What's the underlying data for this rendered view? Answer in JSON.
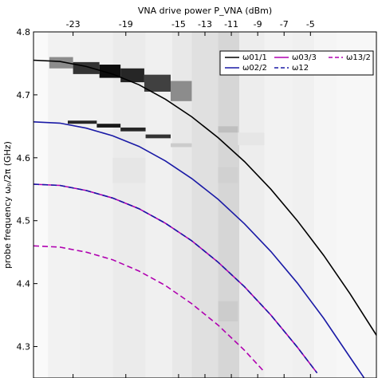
{
  "chart_data": {
    "type": "line",
    "top_axis": {
      "label": "VNA drive power P_VNA (dBm)",
      "ticks": [
        -23,
        -19,
        -15,
        -13,
        -11,
        -9,
        -7,
        -5
      ],
      "tick_labels": [
        "-23",
        "-19",
        "-15",
        "-13",
        "-11",
        "-9",
        "-7",
        "-5"
      ],
      "range": [
        -26,
        0
      ]
    },
    "y_axis": {
      "label": "probe frequency ωₚ/2π (GHz)",
      "ticks": [
        4.3,
        4.4,
        4.5,
        4.6,
        4.7,
        4.8
      ],
      "tick_labels": [
        "4.3",
        "4.4",
        "4.5",
        "4.6",
        "4.7",
        "4.8"
      ],
      "ylim": [
        4.25,
        4.8
      ]
    },
    "series": [
      {
        "name": "ω01/1",
        "color": "#000000",
        "dash": "solid",
        "points": [
          [
            -26,
            4.755
          ],
          [
            -24,
            4.753
          ],
          [
            -22,
            4.745
          ],
          [
            -20,
            4.733
          ],
          [
            -18,
            4.716
          ],
          [
            -16,
            4.693
          ],
          [
            -14,
            4.665
          ],
          [
            -12,
            4.632
          ],
          [
            -10,
            4.594
          ],
          [
            -8,
            4.55
          ],
          [
            -6,
            4.5
          ],
          [
            -4,
            4.445
          ],
          [
            -2,
            4.384
          ],
          [
            0,
            4.318
          ],
          [
            2,
            4.246
          ]
        ]
      },
      {
        "name": "ω02/2",
        "color": "#1a1aa6",
        "dash": "solid",
        "points": [
          [
            -26,
            4.657
          ],
          [
            -24,
            4.655
          ],
          [
            -22,
            4.647
          ],
          [
            -20,
            4.635
          ],
          [
            -18,
            4.618
          ],
          [
            -16,
            4.595
          ],
          [
            -14,
            4.567
          ],
          [
            -12,
            4.534
          ],
          [
            -10,
            4.495
          ],
          [
            -8,
            4.451
          ],
          [
            -6,
            4.401
          ],
          [
            -4,
            4.345
          ],
          [
            -2,
            4.283
          ],
          [
            -0.8,
            4.246
          ]
        ]
      },
      {
        "name": "ω03/3",
        "color": "#b000b0",
        "dash": "solid",
        "points": [
          [
            -26,
            4.558
          ],
          [
            -24,
            4.556
          ],
          [
            -22,
            4.548
          ],
          [
            -20,
            4.536
          ],
          [
            -18,
            4.519
          ],
          [
            -16,
            4.496
          ],
          [
            -14,
            4.468
          ],
          [
            -12,
            4.434
          ],
          [
            -10,
            4.395
          ],
          [
            -8,
            4.35
          ],
          [
            -6,
            4.299
          ],
          [
            -4.5,
            4.258
          ]
        ]
      },
      {
        "name": "ω12",
        "color": "#1a1aa6",
        "dash": "dashed",
        "points": [
          [
            -26,
            4.558
          ],
          [
            -24,
            4.556
          ],
          [
            -22,
            4.548
          ],
          [
            -20,
            4.536
          ],
          [
            -18,
            4.519
          ],
          [
            -16,
            4.496
          ],
          [
            -14,
            4.468
          ],
          [
            -12,
            4.434
          ],
          [
            -10,
            4.395
          ],
          [
            -8,
            4.35
          ],
          [
            -6,
            4.299
          ],
          [
            -4.5,
            4.258
          ]
        ]
      },
      {
        "name": "ω13/2",
        "color": "#b000b0",
        "dash": "dashed",
        "points": [
          [
            -26,
            4.46
          ],
          [
            -24,
            4.458
          ],
          [
            -22,
            4.45
          ],
          [
            -20,
            4.438
          ],
          [
            -18,
            4.42
          ],
          [
            -16,
            4.397
          ],
          [
            -14,
            4.368
          ],
          [
            -12,
            4.334
          ],
          [
            -10,
            4.294
          ],
          [
            -8.6,
            4.262
          ]
        ]
      }
    ],
    "legend": {
      "placement": "top-right",
      "entries": [
        {
          "label": "ω01/1",
          "color": "#000000",
          "dash": "solid"
        },
        {
          "label": "ω03/3",
          "color": "#b000b0",
          "dash": "solid"
        },
        {
          "label": "ω13/2",
          "color": "#b000b0",
          "dash": "dashed"
        },
        {
          "label": "ω02/2",
          "color": "#1a1aa6",
          "dash": "solid"
        },
        {
          "label": "ω12",
          "color": "#1a1aa6",
          "dash": "dashed"
        }
      ]
    },
    "background": {
      "colormap": "grayscale",
      "columns": [
        {
          "x0": -26,
          "x1": -24.9,
          "level": 0.02
        },
        {
          "x0": -24.9,
          "x1": -22.5,
          "level": 0.05
        },
        {
          "x0": -22.5,
          "x1": -20,
          "level": 0.06
        },
        {
          "x0": -20,
          "x1": -17.5,
          "level": 0.08
        },
        {
          "x0": -17.5,
          "x1": -15.5,
          "level": 0.06
        },
        {
          "x0": -15.5,
          "x1": -14,
          "level": 0.09
        },
        {
          "x0": -14,
          "x1": -12,
          "level": 0.12
        },
        {
          "x0": -12,
          "x1": -10.4,
          "level": 0.16
        },
        {
          "x0": -10.4,
          "x1": -8.5,
          "level": 0.07
        },
        {
          "x0": -8.5,
          "x1": -6.4,
          "level": 0.05
        },
        {
          "x0": -6.4,
          "x1": -4.7,
          "level": 0.06
        },
        {
          "x0": -4.7,
          "x1": -3,
          "level": 0.04
        },
        {
          "x0": -3,
          "x1": 0,
          "level": 0.03
        }
      ],
      "dark_features": [
        {
          "x0": -24.8,
          "x1": -23.0,
          "y0": 4.742,
          "y1": 4.76,
          "level": 0.45
        },
        {
          "x0": -23.0,
          "x1": -21.0,
          "y0": 4.733,
          "y1": 4.752,
          "level": 0.8
        },
        {
          "x0": -21.0,
          "x1": -19.4,
          "y0": 4.727,
          "y1": 4.748,
          "level": 0.95
        },
        {
          "x0": -19.4,
          "x1": -17.6,
          "y0": 4.72,
          "y1": 4.742,
          "level": 0.85
        },
        {
          "x0": -17.6,
          "x1": -15.6,
          "y0": 4.705,
          "y1": 4.732,
          "level": 0.75
        },
        {
          "x0": -15.6,
          "x1": -14.0,
          "y0": 4.69,
          "y1": 4.722,
          "level": 0.45
        },
        {
          "x0": -23.4,
          "x1": -21.2,
          "y0": 4.654,
          "y1": 4.659,
          "level": 0.85
        },
        {
          "x0": -21.2,
          "x1": -19.4,
          "y0": 4.648,
          "y1": 4.654,
          "level": 0.9
        },
        {
          "x0": -19.4,
          "x1": -17.5,
          "y0": 4.642,
          "y1": 4.648,
          "level": 0.85
        },
        {
          "x0": -17.5,
          "x1": -15.6,
          "y0": 4.631,
          "y1": 4.637,
          "level": 0.8
        },
        {
          "x0": -15.6,
          "x1": -14.0,
          "y0": 4.617,
          "y1": 4.623,
          "level": 0.2
        },
        {
          "x0": -12.0,
          "x1": -10.5,
          "y0": 4.64,
          "y1": 4.65,
          "level": 0.25
        },
        {
          "x0": -12.0,
          "x1": -10.5,
          "y0": 4.56,
          "y1": 4.585,
          "level": 0.18
        },
        {
          "x0": -12.0,
          "x1": -10.5,
          "y0": 4.34,
          "y1": 4.372,
          "level": 0.2
        },
        {
          "x0": -10.5,
          "x1": -8.5,
          "y0": 4.62,
          "y1": 4.64,
          "level": 0.1
        },
        {
          "x0": -20.0,
          "x1": -17.5,
          "y0": 4.56,
          "y1": 4.6,
          "level": 0.1
        }
      ]
    }
  }
}
